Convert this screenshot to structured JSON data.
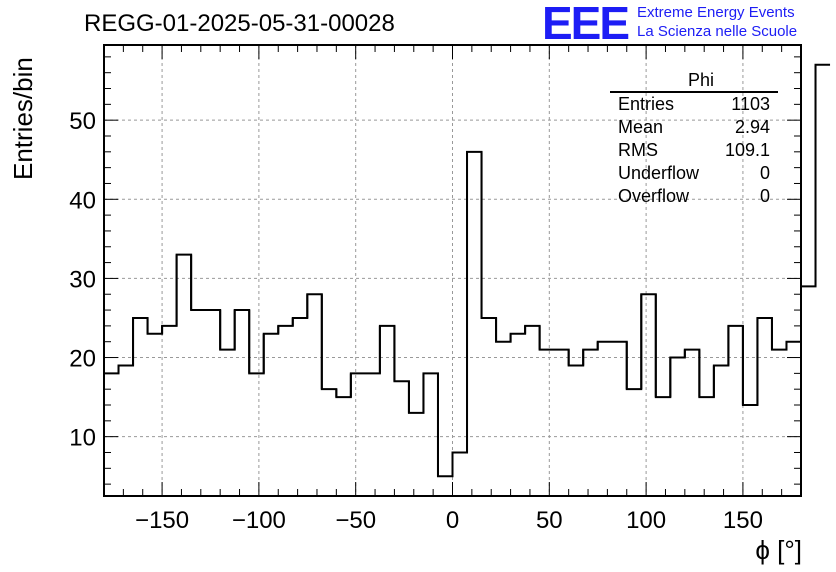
{
  "header": {
    "run_title": "REGG-01-2025-05-31-00028",
    "logo_mark": "EEE",
    "logo_line1": "Extreme Energy Events",
    "logo_line2": "La Scienza nelle Scuole"
  },
  "stats_box": {
    "title": "Phi",
    "rows": [
      {
        "label": "Entries",
        "value": "1103"
      },
      {
        "label": "Mean",
        "value": "2.94"
      },
      {
        "label": "RMS",
        "value": "109.1"
      },
      {
        "label": "Underflow",
        "value": "0"
      },
      {
        "label": "Overflow",
        "value": "0"
      }
    ]
  },
  "chart_data": {
    "type": "bar",
    "style": "step-histogram",
    "title": "REGG-01-2025-05-31-00028",
    "xlabel": "ϕ [°]",
    "ylabel": "Entries/bin",
    "xlim": [
      -180,
      180
    ],
    "ylim": [
      2.5,
      59.5
    ],
    "grid": true,
    "x_ticks": [
      -150,
      -100,
      -50,
      0,
      50,
      100,
      150
    ],
    "x_tick_labels": [
      "−150",
      "−100",
      "−50",
      "0",
      "50",
      "100",
      "150"
    ],
    "y_ticks": [
      10,
      20,
      30,
      40,
      50
    ],
    "y_tick_labels": [
      "10",
      "20",
      "30",
      "40",
      "50"
    ],
    "bin_edges_start": -180,
    "bin_width": 7.5,
    "values": [
      18,
      19,
      25,
      23,
      24,
      33,
      26,
      26,
      21,
      26,
      18,
      23,
      24,
      25,
      28,
      16,
      15,
      18,
      18,
      24,
      17,
      13,
      18,
      5,
      8,
      46,
      25,
      22,
      23,
      24,
      21,
      21,
      19,
      21,
      22,
      22,
      16,
      28,
      15,
      20,
      21,
      15,
      19,
      24,
      14,
      25,
      21,
      22,
      29,
      57
    ]
  }
}
